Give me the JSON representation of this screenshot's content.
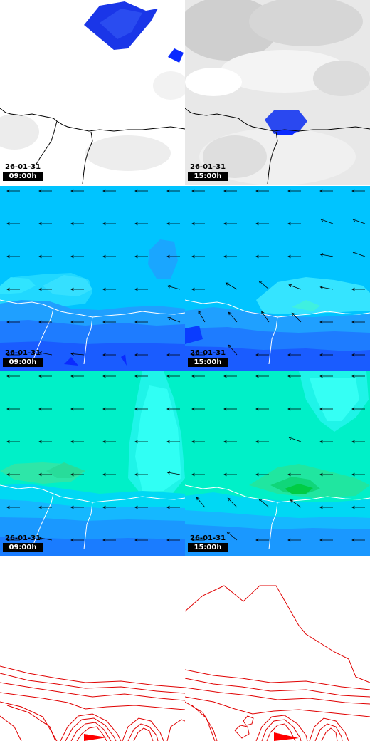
{
  "rows": [
    {
      "name": "cloud-cover",
      "panels": [
        {
          "date": "26-01-31",
          "hour": "09:00h"
        },
        {
          "date": "26-01-31",
          "hour": "15:00h"
        }
      ]
    },
    {
      "name": "wind-a",
      "panels": [
        {
          "date": "26-01-31",
          "hour": "09:00h"
        },
        {
          "date": "26-01-31",
          "hour": "15:00h"
        }
      ]
    },
    {
      "name": "wind-b",
      "panels": [
        {
          "date": "26-01-31",
          "hour": "09:00h"
        },
        {
          "date": "26-01-31",
          "hour": "15:00h"
        }
      ]
    },
    {
      "name": "pressure-contours",
      "panels": [
        {},
        {}
      ]
    }
  ],
  "colors": {
    "coast": "#000000",
    "cloud_blue": "#0a2aff",
    "wind_sky": "#00c8ff",
    "wind_teal": "#00ffd0",
    "wind_blue": "#1a7dff",
    "wind_deep": "#0a3cff",
    "contour": "#e00000"
  }
}
